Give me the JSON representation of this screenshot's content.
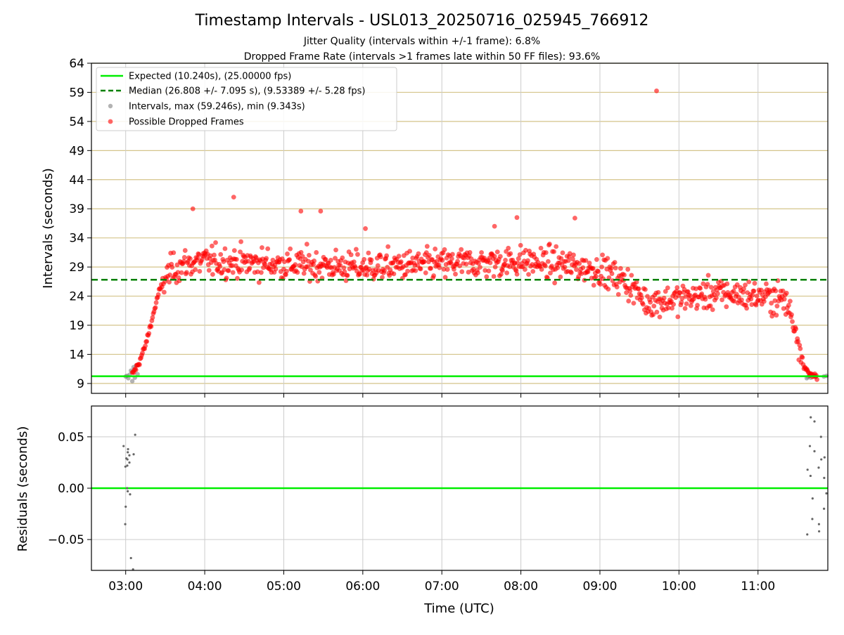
{
  "chart_data": [
    {
      "type": "scatter",
      "title": "Timestamp Intervals - USL013_20250716_025945_766912",
      "subtitle_1": "Jitter Quality (intervals within +/-1 frame): 6.8%",
      "subtitle_2": "Dropped Frame Rate (intervals >1 frames late within 50 FF files): 93.6%",
      "xlabel": "",
      "ylabel": "Intervals (seconds)",
      "xlim": [
        "02:34",
        "11:53"
      ],
      "ylim": [
        7.3,
        64
      ],
      "yticks": [
        9,
        14,
        19,
        24,
        29,
        34,
        39,
        44,
        49,
        54,
        59,
        64
      ],
      "ytick_labels": [
        "9",
        "14",
        "19",
        "24",
        "29",
        "34",
        "39",
        "44",
        "49",
        "54",
        "59",
        "64"
      ],
      "grid": true,
      "legend_position": "top-left",
      "legend": [
        "Expected (10.240s), (25.00000 fps)",
        "Median (26.808 +/- 7.095 s), (9.53389 +/- 5.28 fps)",
        "Intervals, max (59.246s), min (9.343s)",
        "Possible Dropped Frames"
      ],
      "colors": {
        "expected": "#00ee00",
        "median": "#008000",
        "intervals": "#808080",
        "dropped": "#ff0000",
        "hgrid": "#d4c48a",
        "vgrid": "#cccccc"
      },
      "expected_line": {
        "y": 10.24
      },
      "median_line": {
        "y": 26.808
      },
      "series": [
        {
          "name": "Intervals, max (59.246s), min (9.343s)",
          "points": [
            [
              "03:00",
              10.2
            ],
            [
              "03:01",
              10.3
            ],
            [
              "03:02",
              9.9
            ],
            [
              "03:03",
              10.5
            ],
            [
              "03:04",
              11.2
            ],
            [
              "03:05",
              9.4
            ],
            [
              "03:06",
              11.8
            ],
            [
              "03:07",
              10.0
            ],
            [
              "03:08",
              12.1
            ],
            [
              "03:09",
              10.6
            ],
            [
              "11:37",
              9.9
            ],
            [
              "11:38",
              10.1
            ],
            [
              "11:39",
              10.3
            ],
            [
              "11:40",
              10.0
            ],
            [
              "11:44",
              10.2
            ],
            [
              "11:50",
              10.2
            ],
            [
              "11:52",
              10.3
            ]
          ]
        },
        {
          "name": "Possible Dropped Frames",
          "envelope": [
            [
              "03:05",
              10.5
            ],
            [
              "03:10",
              12.5
            ],
            [
              "03:15",
              15.5
            ],
            [
              "03:20",
              20.0
            ],
            [
              "03:25",
              24.5
            ],
            [
              "03:30",
              27.0
            ],
            [
              "03:35",
              28.5
            ],
            [
              "03:45",
              29.5
            ],
            [
              "04:00",
              30.0
            ],
            [
              "05:00",
              29.5
            ],
            [
              "06:00",
              29.0
            ],
            [
              "07:00",
              29.5
            ],
            [
              "08:00",
              30.0
            ],
            [
              "08:30",
              29.5
            ],
            [
              "09:00",
              28.5
            ],
            [
              "09:20",
              26.5
            ],
            [
              "09:35",
              23.0
            ],
            [
              "10:00",
              23.5
            ],
            [
              "10:30",
              24.5
            ],
            [
              "11:00",
              24.0
            ],
            [
              "11:20",
              23.5
            ],
            [
              "11:25",
              21.0
            ],
            [
              "11:30",
              17.0
            ],
            [
              "11:35",
              12.0
            ],
            [
              "11:39",
              10.5
            ],
            [
              "11:45",
              10.3
            ]
          ],
          "outliers": [
            [
              "09:43",
              59.25
            ],
            [
              "04:22",
              41.0
            ],
            [
              "03:51",
              39.0
            ],
            [
              "05:13",
              38.6
            ],
            [
              "05:28",
              38.6
            ],
            [
              "07:57",
              37.5
            ],
            [
              "08:41",
              37.4
            ],
            [
              "07:40",
              36.0
            ],
            [
              "06:02",
              35.6
            ]
          ]
        }
      ]
    },
    {
      "type": "scatter",
      "xlabel": "Time (UTC)",
      "ylabel": "Residuals (seconds)",
      "xlim": [
        "02:34",
        "11:53"
      ],
      "ylim": [
        -0.08,
        0.08
      ],
      "yticks": [
        -0.05,
        0.0,
        0.05
      ],
      "ytick_labels": [
        "−0.05",
        "0.00",
        "0.05"
      ],
      "xticks": [
        "03:00",
        "04:00",
        "05:00",
        "06:00",
        "07:00",
        "08:00",
        "09:00",
        "10:00",
        "11:00"
      ],
      "grid": true,
      "zero_line": {
        "y": 0.0
      },
      "series": [
        {
          "name": "",
          "points": [
            [
              "03:00",
              0.041
            ],
            [
              "03:00",
              0.021
            ],
            [
              "03:01",
              0.029
            ],
            [
              "03:01",
              -0.035
            ],
            [
              "03:01",
              -0.018
            ],
            [
              "03:02",
              0.032
            ],
            [
              "03:02",
              0.038
            ],
            [
              "03:02",
              -0.003
            ],
            [
              "03:03",
              -0.068
            ],
            [
              "03:03",
              0.035
            ],
            [
              "03:03",
              -0.006
            ],
            [
              "03:04",
              0.025
            ],
            [
              "03:05",
              0.033
            ],
            [
              "03:07",
              -0.079
            ],
            [
              "03:08",
              0.052
            ],
            [
              "03:01",
              0.022
            ],
            [
              "03:02",
              0.0
            ],
            [
              "03:00",
              0.028
            ],
            [
              "11:37",
              0.018
            ],
            [
              "11:38",
              -0.045
            ],
            [
              "11:39",
              0.069
            ],
            [
              "11:40",
              0.041
            ],
            [
              "11:40",
              0.012
            ],
            [
              "11:41",
              -0.01
            ],
            [
              "11:42",
              -0.03
            ],
            [
              "11:43",
              0.065
            ],
            [
              "11:44",
              0.036
            ],
            [
              "11:45",
              -0.042
            ],
            [
              "11:45",
              0.02
            ],
            [
              "11:46",
              -0.035
            ],
            [
              "11:47",
              0.05
            ],
            [
              "11:48",
              0.028
            ],
            [
              "11:49",
              0.01
            ],
            [
              "11:50",
              -0.02
            ],
            [
              "11:51",
              0.03
            ],
            [
              "11:52",
              -0.005
            ]
          ]
        }
      ]
    }
  ]
}
